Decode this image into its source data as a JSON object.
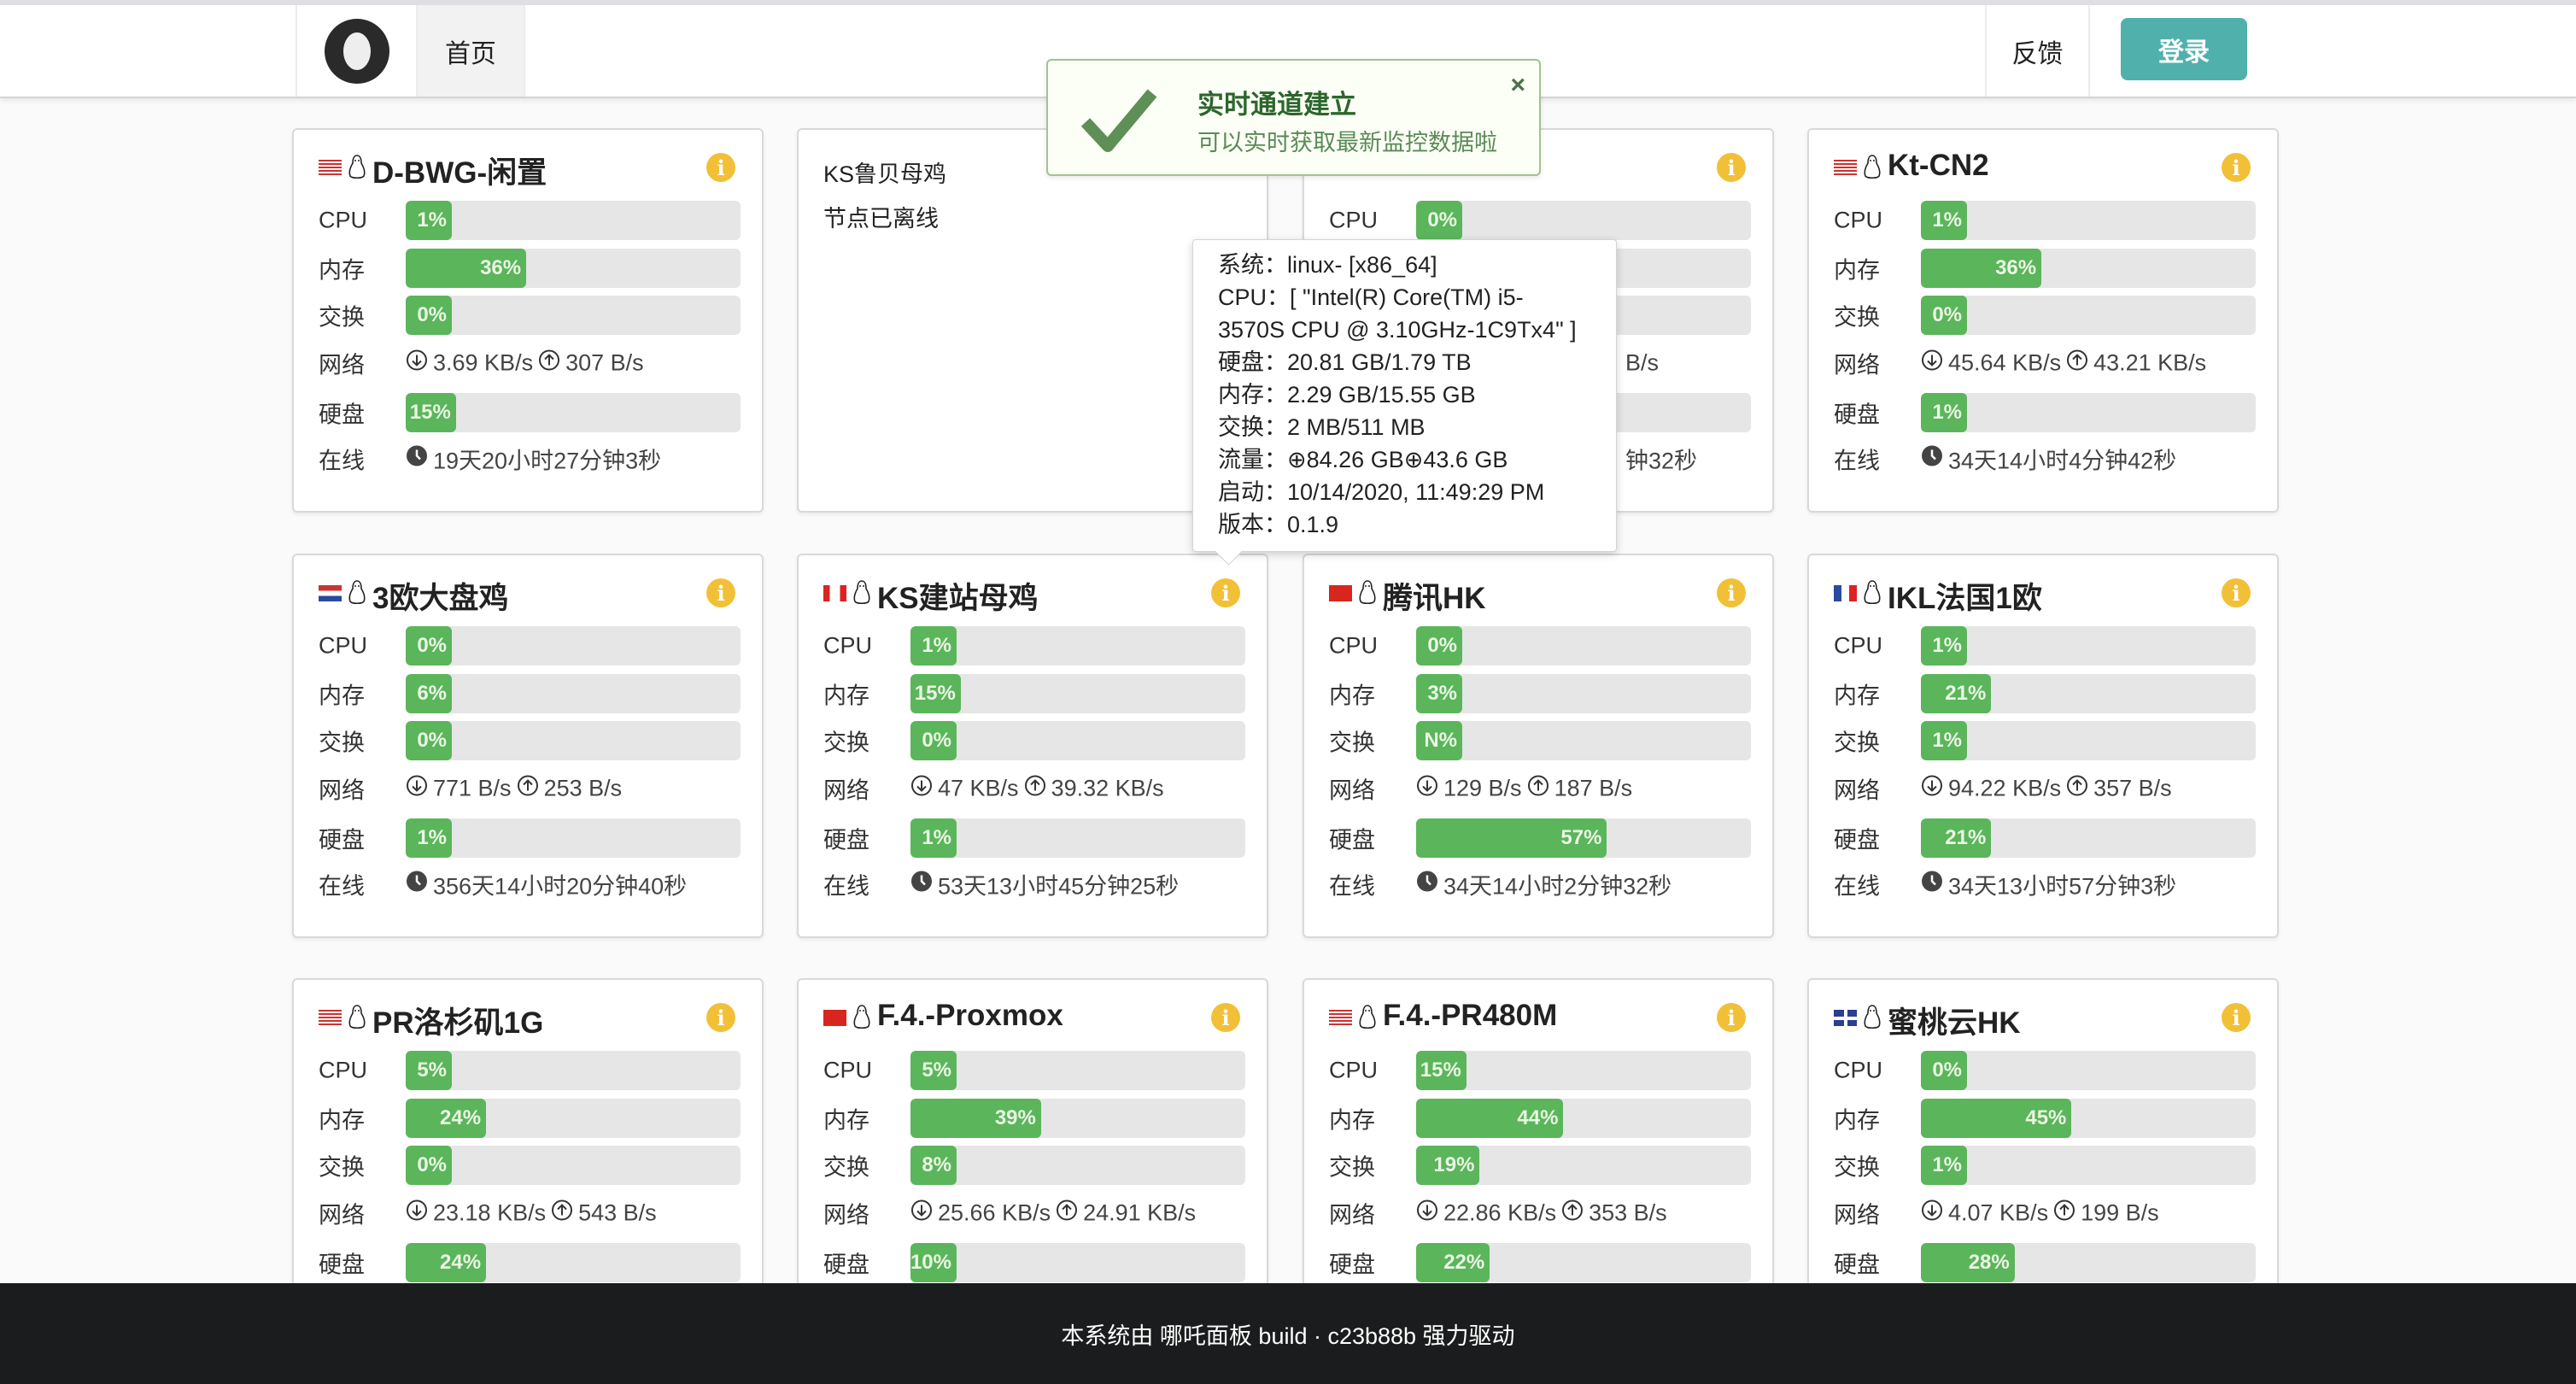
{
  "header": {
    "home": "首页",
    "feedback": "反馈",
    "login": "登录",
    "logo_icon": "cat-avatar-logo"
  },
  "labels": {
    "cpu": "CPU",
    "mem": "内存",
    "swap": "交换",
    "net": "网络",
    "disk": "硬盘",
    "uptime": "在线"
  },
  "colors": {
    "bar_fill": "#5bb55b",
    "bar_bg": "#e6e6e6",
    "info": "#f2c037",
    "login": "#50b1ac",
    "footer": "#1b1c1d"
  },
  "toast": {
    "title": "实时通道建立",
    "message": "可以实时获取最新监控数据啦",
    "close": "×",
    "icon": "check-icon"
  },
  "tooltip": {
    "lines": [
      "系统：linux- [x86_64]",
      "CPU：[ \"Intel(R) Core(TM) i5-",
      "3570S CPU @ 3.10GHz-1C9Tx4\" ]",
      "硬盘：20.81 GB/1.79 TB",
      "内存：2.29 GB/15.55 GB",
      "交换：2 MB/511 MB",
      "流量：⊕84.26 GB⊕43.6 GB",
      "启动：10/14/2020, 11:49:29 PM",
      "版本：0.1.9"
    ]
  },
  "nodes": [
    {
      "flag": "us",
      "name": "D-BWG-闲置",
      "cpu": 1,
      "mem": 36,
      "swap": 0,
      "down": "3.69 KB/s",
      "up": "307 B/s",
      "disk": 15,
      "uptime": "19天20小时27分钟3秒"
    },
    {
      "offline": true,
      "name": "KS鲁贝母鸡",
      "status": "节点已离线"
    },
    {
      "partial": true,
      "cpu": 0,
      "net_tail": "B/s",
      "uptime_tail": "钟32秒"
    },
    {
      "flag": "us",
      "name": "Kt-CN2",
      "cpu": 1,
      "mem": 36,
      "swap": 0,
      "down": "45.64 KB/s",
      "up": "43.21 KB/s",
      "disk": 1,
      "uptime": "34天14小时4分钟42秒"
    },
    {
      "flag": "nl",
      "name": "3欧大盘鸡",
      "cpu": 0,
      "mem": 6,
      "swap": 0,
      "down": "771 B/s",
      "up": "253 B/s",
      "disk": 1,
      "uptime": "356天14小时20分钟40秒"
    },
    {
      "flag": "ca",
      "name": "KS建站母鸡",
      "cpu": 1,
      "mem": 15,
      "swap": 0,
      "down": "47 KB/s",
      "up": "39.32 KB/s",
      "disk": 1,
      "uptime": "53天13小时45分钟25秒"
    },
    {
      "flag": "hk",
      "name": "腾讯HK",
      "cpu": 0,
      "mem": 3,
      "swap": "N",
      "down": "129 B/s",
      "up": "187 B/s",
      "disk": 57,
      "uptime": "34天14小时2分钟32秒"
    },
    {
      "flag": "fr",
      "name": "IKL法国1欧",
      "cpu": 1,
      "mem": 21,
      "swap": 1,
      "down": "94.22 KB/s",
      "up": "357 B/s",
      "disk": 21,
      "uptime": "34天13小时57分钟3秒"
    },
    {
      "flag": "us",
      "name": "PR洛杉矶1G",
      "cpu": 5,
      "mem": 24,
      "swap": 0,
      "down": "23.18 KB/s",
      "up": "543 B/s",
      "disk": 24
    },
    {
      "flag": "cn",
      "name": "F.4.-Proxmox",
      "cpu": 5,
      "mem": 39,
      "swap": 8,
      "down": "25.66 KB/s",
      "up": "24.91 KB/s",
      "disk": 10
    },
    {
      "flag": "us",
      "name": "F.4.-PR480M",
      "cpu": 15,
      "mem": 44,
      "swap": 19,
      "down": "22.86 KB/s",
      "up": "353 B/s",
      "disk": 22
    },
    {
      "flag": "gb",
      "name": "蜜桃云HK",
      "cpu": 0,
      "mem": 45,
      "swap": 1,
      "down": "4.07 KB/s",
      "up": "199 B/s",
      "disk": 28
    }
  ],
  "footer": {
    "text": "本系统由 哪吒面板 build · c23b88b 强力驱动"
  }
}
